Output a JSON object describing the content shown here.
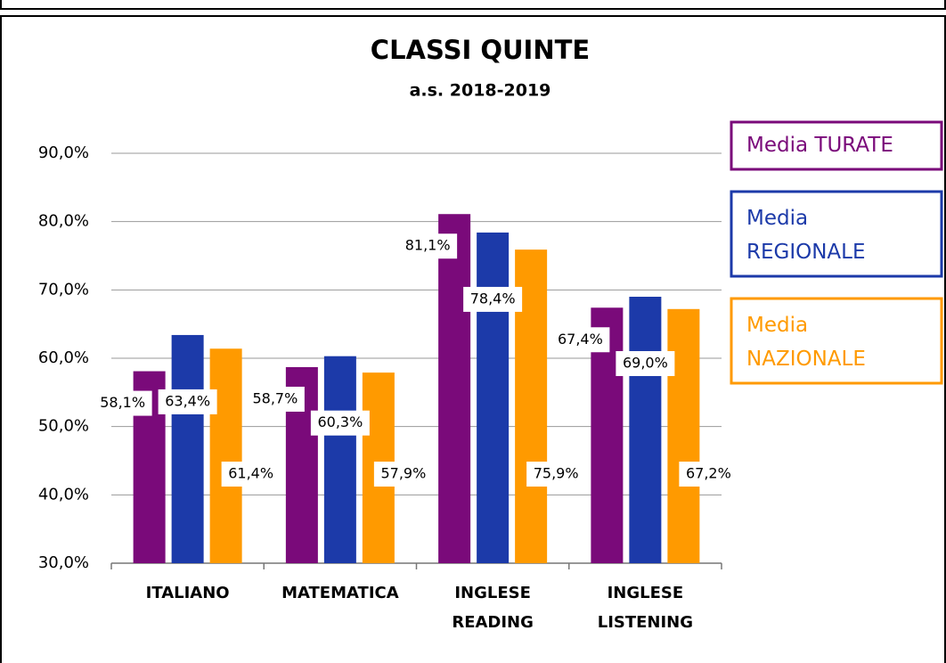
{
  "chart_data": {
    "type": "bar",
    "title": "CLASSI QUINTE",
    "subtitle": "a.s. 2018-2019",
    "categories": [
      "ITALIANO",
      "MATEMATICA",
      "INGLESE\nREADING",
      "INGLESE\nLISTENING"
    ],
    "series": [
      {
        "name": "Media TURATE",
        "color": "#7a0a7a",
        "values": [
          58.1,
          58.7,
          81.1,
          67.4
        ],
        "value_labels": [
          "58,1%",
          "58,7%",
          "81,1%",
          "67,4%"
        ]
      },
      {
        "name": "Media REGIONALE",
        "color": "#1c3aa9",
        "values": [
          63.4,
          60.3,
          78.4,
          69.0
        ],
        "value_labels": [
          "63,4%",
          "60,3%",
          "78,4%",
          "69,0%"
        ]
      },
      {
        "name": "Media NAZIONALE",
        "color": "#ff9a00",
        "values": [
          61.4,
          57.9,
          75.9,
          67.2
        ],
        "value_labels": [
          "61,4%",
          "57,9%",
          "75,9%",
          "67,2%"
        ]
      }
    ],
    "ylim": [
      30,
      90
    ],
    "yticks": [
      {
        "value": 30,
        "label": "30,0%"
      },
      {
        "value": 40,
        "label": "40,0%"
      },
      {
        "value": 50,
        "label": "50,0%"
      },
      {
        "value": 60,
        "label": "60,0%"
      },
      {
        "value": 70,
        "label": "70,0%"
      },
      {
        "value": 80,
        "label": "80,0%"
      },
      {
        "value": 90,
        "label": "90,0%"
      }
    ],
    "grid": true,
    "legend": "right"
  }
}
